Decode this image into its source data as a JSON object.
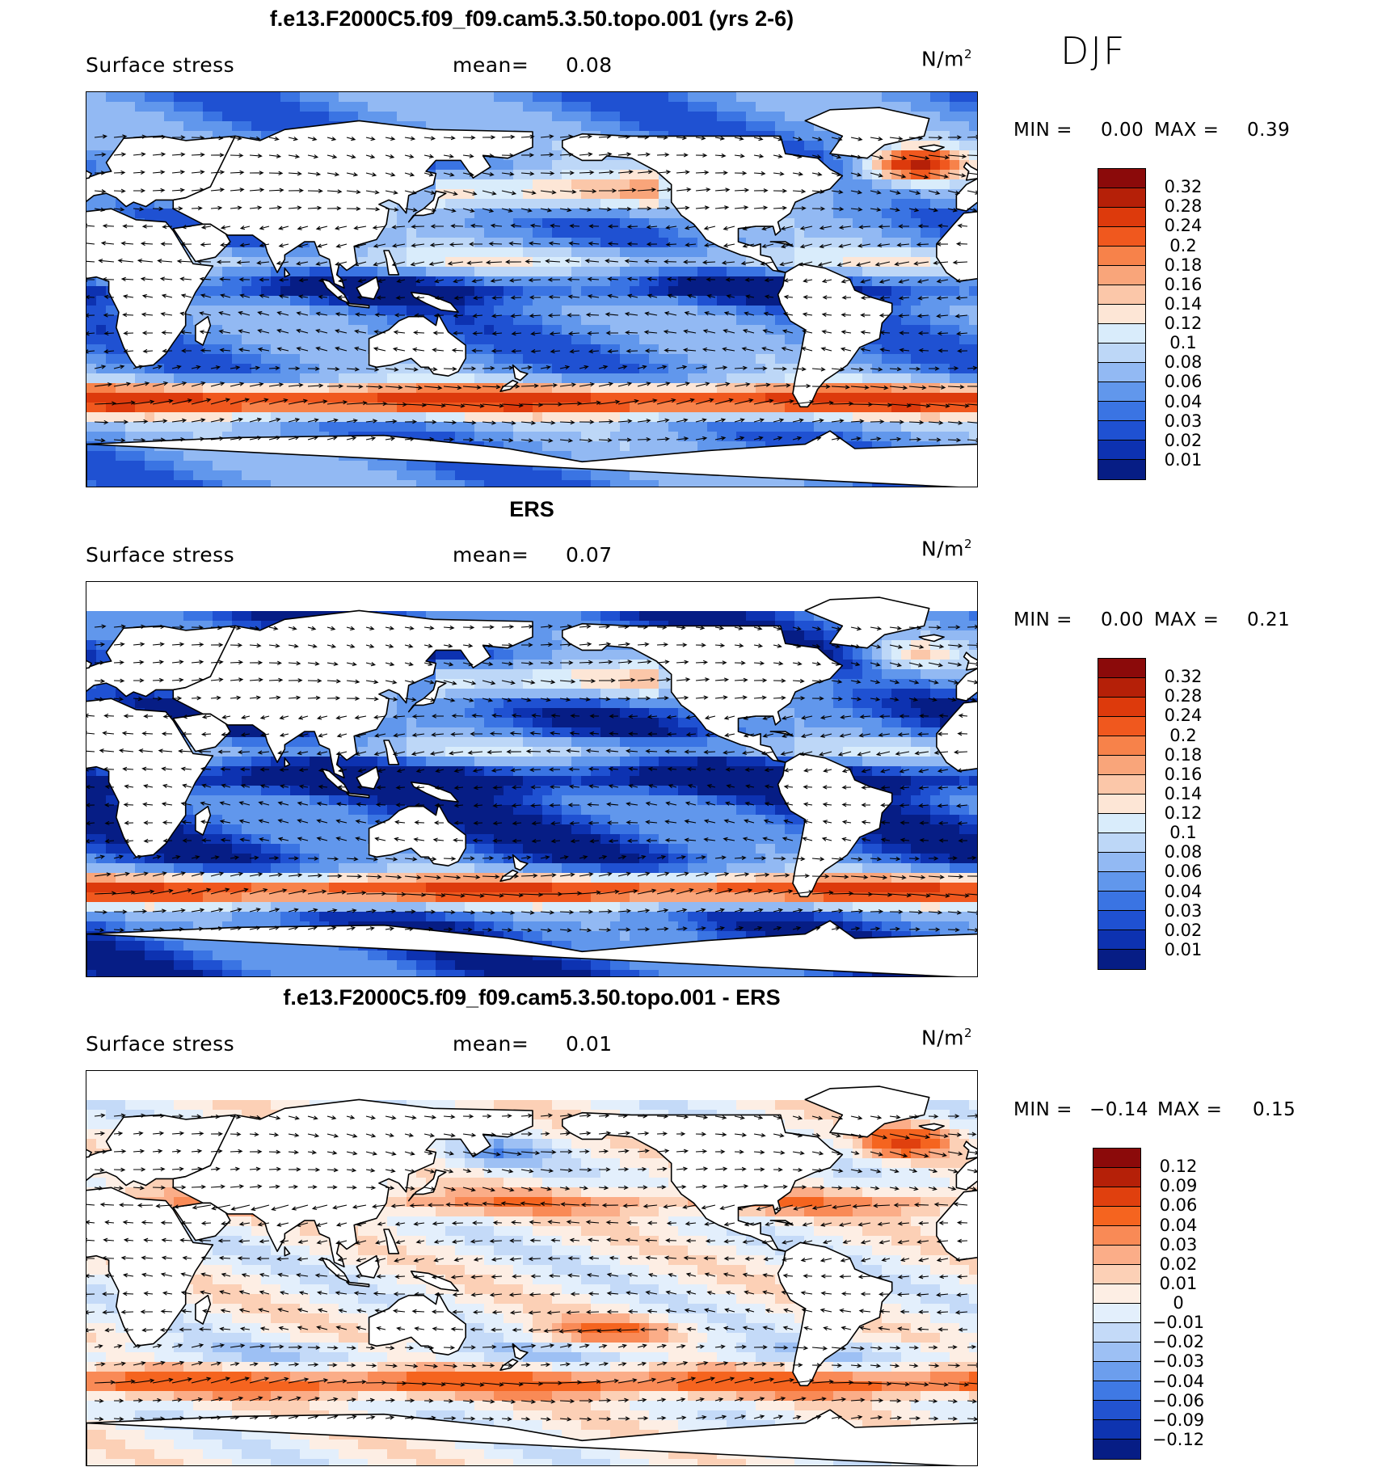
{
  "season": "DJF",
  "units_text": "N/m",
  "units_sup": "2",
  "panels": [
    {
      "id": "model",
      "title": "f.e13.F2000C5.f09_f09.cam5.3.50.topo.001 (yrs 2-6)",
      "variable": "Surface stress",
      "mean_label": "mean=",
      "mean_value": "0.08",
      "min_label": "MIN =",
      "min_value": "0.00",
      "max_label": "MAX =",
      "max_value": "0.39",
      "scale": "abs",
      "levels": [
        "0.32",
        "0.28",
        "0.24",
        "0.2",
        "0.18",
        "0.16",
        "0.14",
        "0.12",
        "0.1",
        "0.08",
        "0.06",
        "0.04",
        "0.03",
        "0.02",
        "0.01"
      ],
      "colors": [
        "#8b0a0a",
        "#b52008",
        "#dd3a0c",
        "#f0581e",
        "#f7824a",
        "#f9a57a",
        "#fbc7a9",
        "#fde6d6",
        "#d9ecfb",
        "#bdd7f7",
        "#92b9f3",
        "#6197ec",
        "#3a74e3",
        "#1f51d2",
        "#0d32b1",
        "#061d85"
      ]
    },
    {
      "id": "obs",
      "title": "ERS",
      "variable": "Surface stress",
      "mean_label": "mean=",
      "mean_value": "0.07",
      "min_label": "MIN =",
      "min_value": "0.00",
      "max_label": "MAX =",
      "max_value": "0.21",
      "scale": "abs",
      "levels": [
        "0.32",
        "0.28",
        "0.24",
        "0.2",
        "0.18",
        "0.16",
        "0.14",
        "0.12",
        "0.1",
        "0.08",
        "0.06",
        "0.04",
        "0.03",
        "0.02",
        "0.01"
      ],
      "colors": [
        "#8b0a0a",
        "#b52008",
        "#dd3a0c",
        "#f0581e",
        "#f7824a",
        "#f9a57a",
        "#fbc7a9",
        "#fde6d6",
        "#d9ecfb",
        "#bdd7f7",
        "#92b9f3",
        "#6197ec",
        "#3a74e3",
        "#1f51d2",
        "#0d32b1",
        "#061d85"
      ]
    },
    {
      "id": "diff",
      "title": "f.e13.F2000C5.f09_f09.cam5.3.50.topo.001 - ERS",
      "variable": "Surface stress",
      "mean_label": "mean=",
      "mean_value": "0.01",
      "min_label": "MIN =",
      "min_value": "−0.14",
      "max_label": "MAX =",
      "max_value": "0.15",
      "scale": "diff",
      "levels": [
        "0.12",
        "0.09",
        "0.06",
        "0.04",
        "0.03",
        "0.02",
        "0.01",
        "0",
        "−0.01",
        "−0.02",
        "−0.03",
        "−0.04",
        "−0.06",
        "−0.09",
        "−0.12"
      ],
      "colors": [
        "#8b0a0a",
        "#b52008",
        "#e0400e",
        "#f5641f",
        "#f98a56",
        "#fbad88",
        "#fcd0b6",
        "#fdeee4",
        "#e3effc",
        "#c4daf8",
        "#9dc0f4",
        "#6c9eed",
        "#3f79e4",
        "#2253d0",
        "#0e34b0",
        "#061d85"
      ]
    }
  ]
}
